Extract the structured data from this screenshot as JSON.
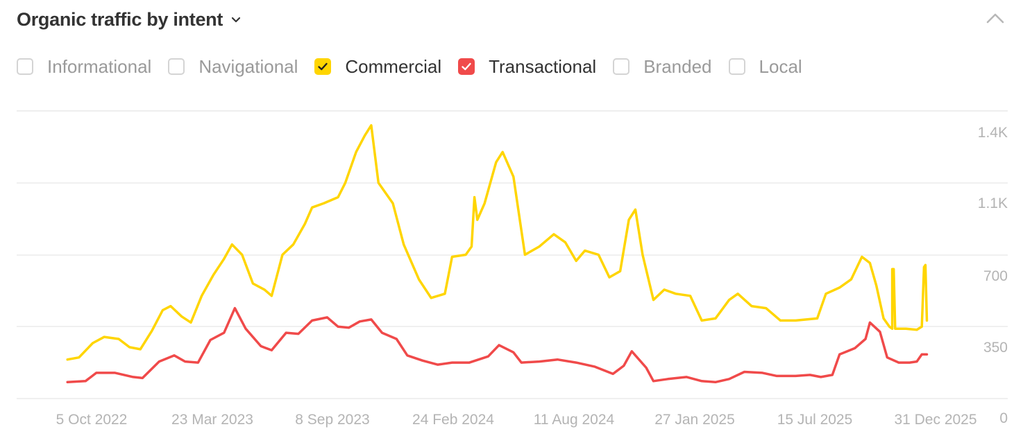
{
  "header": {
    "title": "Organic traffic by intent",
    "chevron_icon": "chevron-down-icon",
    "collapse_icon": "chevron-up-icon"
  },
  "legend": {
    "items": [
      {
        "label": "Informational",
        "checked": false,
        "color": ""
      },
      {
        "label": "Navigational",
        "checked": false,
        "color": ""
      },
      {
        "label": "Commercial",
        "checked": true,
        "color": "#ffd500"
      },
      {
        "label": "Transactional",
        "checked": true,
        "color": "#f04a4a"
      },
      {
        "label": "Branded",
        "checked": false,
        "color": ""
      },
      {
        "label": "Local",
        "checked": false,
        "color": ""
      }
    ]
  },
  "chart_data": {
    "type": "line",
    "y_ticks": [
      {
        "value": 0,
        "label": "0"
      },
      {
        "value": 350,
        "label": "350"
      },
      {
        "value": 700,
        "label": "700"
      },
      {
        "value": 1050,
        "label": "1.1K"
      },
      {
        "value": 1400,
        "label": "1.4K"
      }
    ],
    "ylim": [
      0,
      1400
    ],
    "x_ticks": [
      "5 Oct 2022",
      "23 Mar 2023",
      "8 Sep 2023",
      "24 Feb 2024",
      "11 Aug 2024",
      "27 Jan 2025",
      "15 Jul 2025",
      "31 Dec 2025"
    ],
    "xlim": [
      "2022-08-15",
      "2026-01-02"
    ],
    "grid": true,
    "series": [
      {
        "name": "Commercial",
        "color": "#ffd500",
        "points": [
          [
            "2022-09-15",
            190
          ],
          [
            "2022-10-01",
            200
          ],
          [
            "2022-10-20",
            270
          ],
          [
            "2022-11-05",
            300
          ],
          [
            "2022-11-25",
            290
          ],
          [
            "2022-12-10",
            250
          ],
          [
            "2022-12-25",
            240
          ],
          [
            "2023-01-10",
            330
          ],
          [
            "2023-01-25",
            430
          ],
          [
            "2023-02-05",
            450
          ],
          [
            "2023-02-20",
            400
          ],
          [
            "2023-03-05",
            370
          ],
          [
            "2023-03-20",
            500
          ],
          [
            "2023-04-05",
            600
          ],
          [
            "2023-04-20",
            680
          ],
          [
            "2023-05-01",
            750
          ],
          [
            "2023-05-15",
            700
          ],
          [
            "2023-05-30",
            560
          ],
          [
            "2023-06-15",
            530
          ],
          [
            "2023-06-25",
            500
          ],
          [
            "2023-07-10",
            700
          ],
          [
            "2023-07-25",
            750
          ],
          [
            "2023-08-10",
            850
          ],
          [
            "2023-08-20",
            930
          ],
          [
            "2023-09-05",
            950
          ],
          [
            "2023-09-25",
            980
          ],
          [
            "2023-10-05",
            1050
          ],
          [
            "2023-10-20",
            1200
          ],
          [
            "2023-11-01",
            1280
          ],
          [
            "2023-11-10",
            1330
          ],
          [
            "2023-11-20",
            1050
          ],
          [
            "2023-12-10",
            950
          ],
          [
            "2023-12-25",
            750
          ],
          [
            "2024-01-15",
            580
          ],
          [
            "2024-02-01",
            490
          ],
          [
            "2024-02-20",
            510
          ],
          [
            "2024-03-01",
            690
          ],
          [
            "2024-03-20",
            700
          ],
          [
            "2024-03-28",
            740
          ],
          [
            "2024-04-01",
            980
          ],
          [
            "2024-04-05",
            870
          ],
          [
            "2024-04-15",
            950
          ],
          [
            "2024-05-01",
            1150
          ],
          [
            "2024-05-10",
            1200
          ],
          [
            "2024-05-25",
            1080
          ],
          [
            "2024-06-10",
            700
          ],
          [
            "2024-06-30",
            740
          ],
          [
            "2024-07-20",
            800
          ],
          [
            "2024-08-05",
            760
          ],
          [
            "2024-08-20",
            670
          ],
          [
            "2024-09-01",
            720
          ],
          [
            "2024-09-20",
            700
          ],
          [
            "2024-10-05",
            590
          ],
          [
            "2024-10-20",
            620
          ],
          [
            "2024-11-01",
            870
          ],
          [
            "2024-11-10",
            920
          ],
          [
            "2024-11-20",
            700
          ],
          [
            "2024-12-05",
            480
          ],
          [
            "2024-12-20",
            530
          ],
          [
            "2025-01-05",
            510
          ],
          [
            "2025-01-25",
            500
          ],
          [
            "2025-02-10",
            380
          ],
          [
            "2025-03-01",
            390
          ],
          [
            "2025-03-20",
            480
          ],
          [
            "2025-04-01",
            510
          ],
          [
            "2025-04-20",
            450
          ],
          [
            "2025-05-10",
            440
          ],
          [
            "2025-05-30",
            380
          ],
          [
            "2025-06-20",
            380
          ],
          [
            "2025-07-20",
            390
          ],
          [
            "2025-08-01",
            510
          ],
          [
            "2025-08-20",
            540
          ],
          [
            "2025-09-05",
            580
          ],
          [
            "2025-09-20",
            690
          ],
          [
            "2025-10-01",
            660
          ],
          [
            "2025-10-10",
            550
          ],
          [
            "2025-10-20",
            390
          ],
          [
            "2025-10-28",
            350
          ],
          [
            "2025-11-01",
            340
          ],
          [
            "2025-11-01",
            630
          ],
          [
            "2025-11-03",
            630
          ],
          [
            "2025-11-05",
            340
          ],
          [
            "2025-11-20",
            340
          ],
          [
            "2025-12-05",
            335
          ],
          [
            "2025-12-12",
            350
          ],
          [
            "2025-12-15",
            640
          ],
          [
            "2025-12-17",
            650
          ],
          [
            "2025-12-19",
            380
          ]
        ]
      },
      {
        "name": "Transactional",
        "color": "#f04a4a",
        "points": [
          [
            "2022-09-15",
            80
          ],
          [
            "2022-10-10",
            85
          ],
          [
            "2022-10-25",
            125
          ],
          [
            "2022-11-20",
            125
          ],
          [
            "2022-12-15",
            105
          ],
          [
            "2022-12-28",
            100
          ],
          [
            "2023-01-20",
            180
          ],
          [
            "2023-02-10",
            210
          ],
          [
            "2023-02-25",
            180
          ],
          [
            "2023-03-15",
            175
          ],
          [
            "2023-04-01",
            285
          ],
          [
            "2023-04-20",
            320
          ],
          [
            "2023-05-05",
            440
          ],
          [
            "2023-05-20",
            340
          ],
          [
            "2023-06-10",
            255
          ],
          [
            "2023-06-25",
            235
          ],
          [
            "2023-07-15",
            320
          ],
          [
            "2023-08-01",
            315
          ],
          [
            "2023-08-20",
            380
          ],
          [
            "2023-09-10",
            395
          ],
          [
            "2023-09-25",
            350
          ],
          [
            "2023-10-10",
            345
          ],
          [
            "2023-10-25",
            375
          ],
          [
            "2023-11-10",
            385
          ],
          [
            "2023-11-25",
            320
          ],
          [
            "2023-12-15",
            290
          ],
          [
            "2023-12-30",
            210
          ],
          [
            "2024-01-20",
            185
          ],
          [
            "2024-02-10",
            165
          ],
          [
            "2024-03-01",
            175
          ],
          [
            "2024-03-25",
            175
          ],
          [
            "2024-04-20",
            205
          ],
          [
            "2024-05-05",
            260
          ],
          [
            "2024-05-25",
            225
          ],
          [
            "2024-06-05",
            175
          ],
          [
            "2024-06-30",
            180
          ],
          [
            "2024-07-25",
            190
          ],
          [
            "2024-08-20",
            175
          ],
          [
            "2024-09-15",
            155
          ],
          [
            "2024-10-10",
            120
          ],
          [
            "2024-10-25",
            160
          ],
          [
            "2024-11-05",
            230
          ],
          [
            "2024-11-25",
            150
          ],
          [
            "2024-12-05",
            85
          ],
          [
            "2024-12-25",
            95
          ],
          [
            "2025-01-20",
            105
          ],
          [
            "2025-02-10",
            85
          ],
          [
            "2025-03-01",
            80
          ],
          [
            "2025-03-20",
            95
          ],
          [
            "2025-04-10",
            130
          ],
          [
            "2025-05-05",
            125
          ],
          [
            "2025-05-25",
            110
          ],
          [
            "2025-06-20",
            110
          ],
          [
            "2025-07-10",
            115
          ],
          [
            "2025-07-25",
            105
          ],
          [
            "2025-08-10",
            115
          ],
          [
            "2025-08-20",
            215
          ],
          [
            "2025-09-10",
            245
          ],
          [
            "2025-09-25",
            290
          ],
          [
            "2025-10-01",
            370
          ],
          [
            "2025-10-15",
            325
          ],
          [
            "2025-10-25",
            200
          ],
          [
            "2025-11-10",
            175
          ],
          [
            "2025-11-25",
            175
          ],
          [
            "2025-12-05",
            180
          ],
          [
            "2025-12-12",
            215
          ],
          [
            "2025-12-19",
            215
          ]
        ]
      }
    ]
  }
}
